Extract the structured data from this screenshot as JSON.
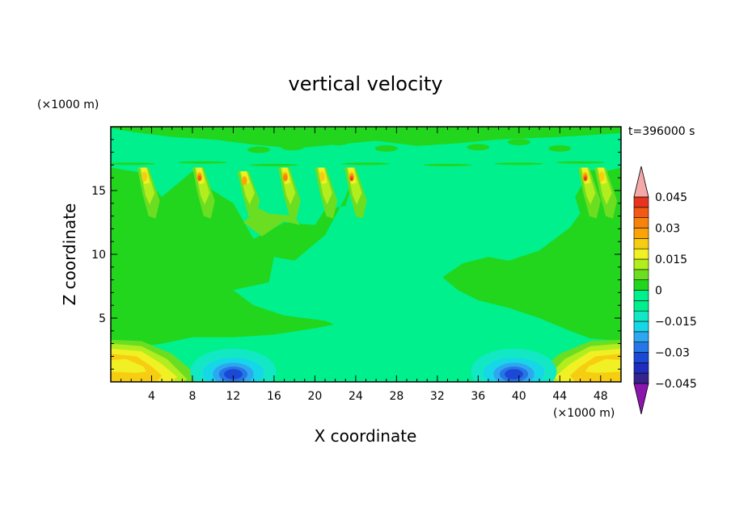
{
  "chart_data": {
    "type": "heatmap",
    "title": "vertical velocity",
    "xlabel": "X coordinate",
    "ylabel": "Z coordinate",
    "x_unit": "(×1000 m)",
    "y_unit": "(×1000 m)",
    "time_label": "t=396000 s",
    "xlim": [
      0,
      50
    ],
    "ylim": [
      0,
      20
    ],
    "x_ticks": [
      4,
      8,
      12,
      16,
      20,
      24,
      28,
      32,
      36,
      40,
      44,
      48
    ],
    "y_ticks": [
      5,
      10,
      15
    ],
    "colorbar": {
      "levels": [
        -0.05,
        -0.045,
        -0.04,
        -0.035,
        -0.03,
        -0.025,
        -0.02,
        -0.015,
        -0.01,
        -0.005,
        0,
        0.005,
        0.01,
        0.015,
        0.02,
        0.025,
        0.03,
        0.035,
        0.04,
        0.045,
        0.05
      ],
      "tick_labels": [
        "0.045",
        "0.03",
        "0.015",
        "0",
        "−0.015",
        "−0.03",
        "−0.045"
      ],
      "tick_values": [
        0.045,
        0.03,
        0.015,
        0,
        -0.015,
        -0.03,
        -0.045
      ],
      "colors": [
        "#8a16ad",
        "#35238e",
        "#1f2dbe",
        "#1c48d6",
        "#2576e6",
        "#2fa6f0",
        "#16d7e8",
        "#12e9c4",
        "#00f08e",
        "#00f08e",
        "#22d61d",
        "#6bde22",
        "#b2ed1d",
        "#f0f025",
        "#f7cd11",
        "#fca30a",
        "#f7830d",
        "#f05a14",
        "#e8341c",
        "#f57a86",
        "#f4a8a8"
      ],
      "extend_top_color": "#f4a8a8",
      "extend_bottom_color": "#8a16ad"
    },
    "background_color": "#00f08e",
    "features": [
      {
        "name": "updraft plume",
        "x": 3.2,
        "z_top": 16.8,
        "peak": 0.02
      },
      {
        "name": "updraft plume",
        "x": 8.6,
        "z_top": 16.8,
        "peak": 0.035
      },
      {
        "name": "updraft plume",
        "x": 13.0,
        "z_top": 16.5,
        "peak": 0.025
      },
      {
        "name": "updraft plume",
        "x": 17.0,
        "z_top": 16.8,
        "peak": 0.03
      },
      {
        "name": "updraft plume",
        "x": 20.6,
        "z_top": 16.8,
        "peak": 0.02
      },
      {
        "name": "updraft plume",
        "x": 23.5,
        "z_top": 16.8,
        "peak": 0.04
      },
      {
        "name": "updraft plume",
        "x": 46.4,
        "z_top": 16.8,
        "peak": 0.04
      },
      {
        "name": "updraft plume",
        "x": 48.0,
        "z_top": 16.8,
        "peak": 0.02
      },
      {
        "name": "downdraft",
        "x": 12.0,
        "z": 0.7,
        "peak": -0.035
      },
      {
        "name": "downdraft",
        "x": 39.5,
        "z": 0.7,
        "peak": -0.035
      },
      {
        "name": "near-surface updraft",
        "x": 1.5,
        "z": 1.4,
        "peak": 0.02
      },
      {
        "name": "near-surface updraft",
        "x": 48.5,
        "z": 1.4,
        "peak": 0.02
      }
    ]
  }
}
